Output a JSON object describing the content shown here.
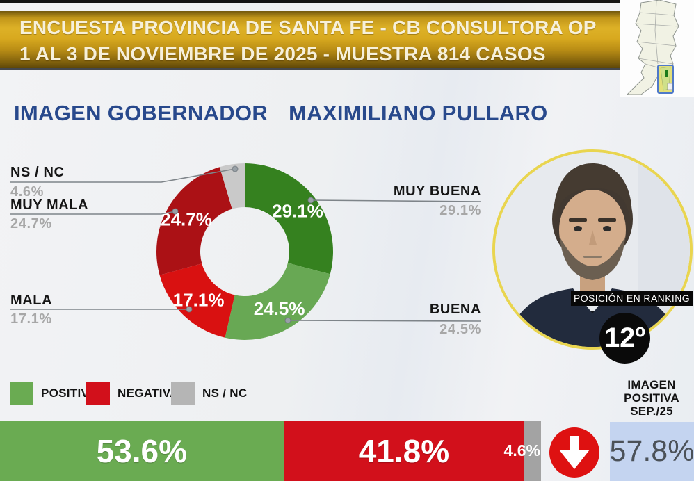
{
  "banner": {
    "line1": "ENCUESTA PROVINCIA DE SANTA FE - CB CONSULTORA OP",
    "line2": "1 AL 3 DE NOVIEMBRE DE 2025 - MUESTRA 814 CASOS"
  },
  "header": {
    "title_label": "IMAGEN GOBERNADOR",
    "title_name": "MAXIMILIANO PULLARO"
  },
  "chart_data": {
    "type": "pie",
    "donut": true,
    "title": "IMAGEN GOBERNADOR MAXIMILIANO PULLARO",
    "categories": [
      "MUY BUENA",
      "BUENA",
      "MALA",
      "MUY MALA",
      "NS / NC"
    ],
    "values": [
      29.1,
      24.5,
      17.1,
      24.7,
      4.6
    ],
    "colors": [
      "#35811f",
      "#68a854",
      "#d91111",
      "#ab1115",
      "#c9c9c9"
    ],
    "start_angle": "top",
    "direction": "clockwise",
    "legend_position": "bottom-left"
  },
  "callouts": {
    "ns_nc": {
      "label": "NS / NC",
      "value": "4.6%"
    },
    "muy_mala": {
      "label": "MUY MALA",
      "value": "24.7%"
    },
    "mala": {
      "label": "MALA",
      "value": "17.1%"
    },
    "muy_buena": {
      "label": "MUY BUENA",
      "value": "29.1%"
    },
    "buena": {
      "label": "BUENA",
      "value": "24.5%"
    }
  },
  "legend": {
    "items": [
      {
        "label": "POSITIVA",
        "color": "#6aab52"
      },
      {
        "label": "NEGATIVA",
        "color": "#d2101b"
      },
      {
        "label": "NS / NC",
        "color": "#b5b5b5"
      }
    ]
  },
  "summary_bar": {
    "positive": {
      "label": "53.6%",
      "value": 53.6,
      "color": "#6aab52"
    },
    "negative": {
      "label": "41.8%",
      "value": 41.8,
      "color": "#d2101b"
    },
    "ns_nc": {
      "label": "4.6%",
      "value": 4.6,
      "color": "#a3a3a3"
    }
  },
  "trend": {
    "icon": "down-arrow",
    "color": "#de1111"
  },
  "previous": {
    "heading_line1": "IMAGEN",
    "heading_line2": "POSITIVA",
    "heading_line3": "SEP./25",
    "value": "57.8%",
    "box_color": "#c4d4f0"
  },
  "ranking": {
    "caption": "POSICIÓN EN RANKING",
    "position": "12º"
  }
}
